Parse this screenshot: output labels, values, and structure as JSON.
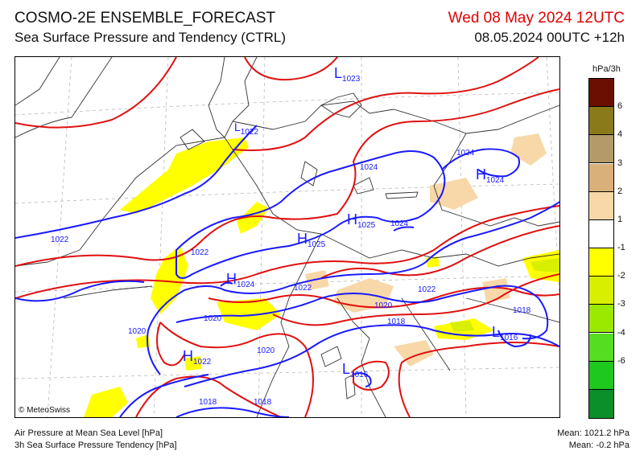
{
  "header": {
    "title": "COSMO-2E ENSEMBLE_FORECAST",
    "subtitle": "Sea Surface Pressure and Tendency (CTRL)",
    "valid_time": "Wed 08 May 2024 12UTC",
    "run_time": "08.05.2024 00UTC +12h"
  },
  "map": {
    "copyright": "© MeteoSwiss",
    "pressure_centers": [
      {
        "type": "L",
        "value": "1023"
      },
      {
        "type": "L",
        "value": "1022"
      },
      {
        "type": "H",
        "value": "1024"
      },
      {
        "type": "H",
        "value": "1025"
      },
      {
        "type": "H",
        "value": "1025"
      },
      {
        "type": "H",
        "value": "1024"
      },
      {
        "type": "H",
        "value": "1022"
      },
      {
        "type": "L",
        "value": "1016"
      },
      {
        "type": "L",
        "value": "1016"
      }
    ],
    "isobar_labels": [
      "1024",
      "1024",
      "1024",
      "1022",
      "1022",
      "1022",
      "1022",
      "1020",
      "1020",
      "1020",
      "1020",
      "1018",
      "1018",
      "1018",
      "1018"
    ]
  },
  "legend": {
    "title": "hPa/3h",
    "colors": [
      "#6b0f00",
      "#8a7a1a",
      "#b39a68",
      "#d9b07a",
      "#f8d8a8",
      "#ffffff",
      "#ffff00",
      "#d8ef00",
      "#9be800",
      "#55dd22",
      "#1ec81e",
      "#0a8f2a"
    ],
    "labels": [
      "6",
      "4",
      "3",
      "2",
      "1",
      "-1",
      "-2",
      "-3",
      "-4",
      "-6"
    ]
  },
  "footer": {
    "field1": "Air Pressure at Mean Sea Level [hPa]",
    "field2": "3h Sea Surface Pressure Tendency [hPa]",
    "mean_pressure": "Mean: 1021.2 hPa",
    "mean_tendency": "Mean:   -0.2 hPa"
  }
}
